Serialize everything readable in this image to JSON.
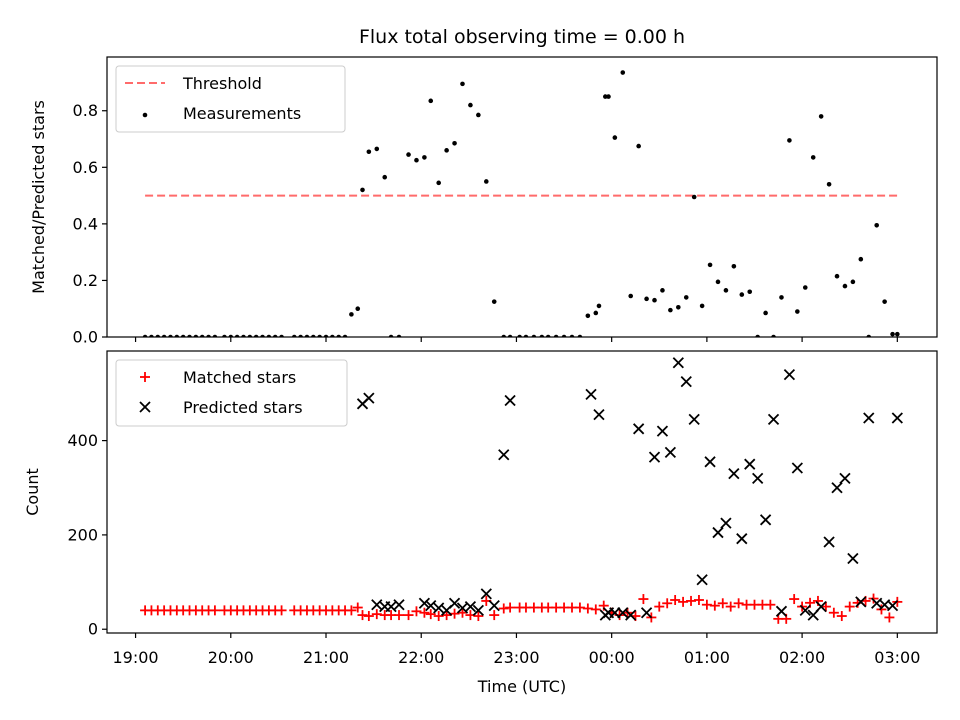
{
  "chart_data": {
    "title": "Flux total observing time = 0.00 h",
    "xlabel": "Time (UTC)",
    "x_ticks": [
      "19:00",
      "20:00",
      "21:00",
      "22:00",
      "23:00",
      "00:00",
      "01:00",
      "02:00",
      "03:00"
    ],
    "colors": {
      "threshold": "#ff6b6b",
      "measurements": "#000000",
      "matched": "#ff0000",
      "predicted": "#000000"
    },
    "panels": [
      {
        "type": "scatter",
        "ylabel": "Matched/Predicted stars",
        "xlim": [
          "18:42",
          "03:25"
        ],
        "ylim": [
          0,
          0.99
        ],
        "y_ticks": [
          "0.0",
          "0.2",
          "0.4",
          "0.6",
          "0.8"
        ],
        "y_tick_values": [
          0,
          0.2,
          0.4,
          0.6,
          0.8
        ],
        "legend_position": "top-left",
        "series": [
          {
            "name": "Threshold",
            "kind": "dashed-line",
            "x": [
              "19:06",
              "03:02"
            ],
            "y": [
              0.5,
              0.5
            ]
          },
          {
            "name": "Measurements",
            "kind": "dots",
            "x": [
              "19:06",
              "19:10",
              "19:14",
              "19:18",
              "19:22",
              "19:26",
              "19:30",
              "19:34",
              "19:38",
              "19:42",
              "19:46",
              "19:50",
              "19:56",
              "20:00",
              "20:04",
              "20:08",
              "20:12",
              "20:16",
              "20:20",
              "20:24",
              "20:28",
              "20:32",
              "20:40",
              "20:44",
              "20:48",
              "20:52",
              "20:56",
              "21:00",
              "21:04",
              "21:08",
              "21:12",
              "21:16",
              "21:20",
              "21:23",
              "21:27",
              "21:32",
              "21:37",
              "21:41",
              "21:46",
              "21:52",
              "21:57",
              "22:02",
              "22:06",
              "22:11",
              "22:16",
              "22:21",
              "22:26",
              "22:31",
              "22:36",
              "22:41",
              "22:46",
              "22:52",
              "22:56",
              "23:02",
              "23:06",
              "23:11",
              "23:16",
              "23:20",
              "23:25",
              "23:30",
              "23:35",
              "23:40",
              "23:45",
              "23:50",
              "23:52",
              "23:56",
              "23:58",
              "00:02",
              "00:07",
              "00:12",
              "00:17",
              "00:22",
              "00:27",
              "00:32",
              "00:37",
              "00:42",
              "00:47",
              "00:52",
              "00:57",
              "01:02",
              "01:07",
              "01:12",
              "01:17",
              "01:22",
              "01:27",
              "01:32",
              "01:37",
              "01:42",
              "01:47",
              "01:52",
              "01:57",
              "02:02",
              "02:07",
              "02:12",
              "02:17",
              "02:22",
              "02:27",
              "02:32",
              "02:37",
              "02:42",
              "02:47",
              "02:52",
              "02:57",
              "03:00"
            ],
            "y": [
              0,
              0,
              0,
              0,
              0,
              0,
              0,
              0,
              0,
              0,
              0,
              0,
              0,
              0,
              0,
              0,
              0,
              0,
              0,
              0,
              0,
              0,
              0,
              0,
              0,
              0,
              0,
              0,
              0,
              0,
              0,
              0.08,
              0.1,
              0.52,
              0.655,
              0.665,
              0.565,
              0,
              0,
              0.645,
              0.625,
              0.635,
              0.835,
              0.545,
              0.66,
              0.685,
              0.895,
              0.82,
              0.785,
              0.55,
              0.125,
              0,
              0,
              0,
              0,
              0,
              0,
              0,
              0,
              0,
              0,
              0,
              0.075,
              0.085,
              0.11,
              0.85,
              0.85,
              0.705,
              0.935,
              0.145,
              0.675,
              0.135,
              0.13,
              0.165,
              0.095,
              0.105,
              0.14,
              0.495,
              0.11,
              0.255,
              0.195,
              0.165,
              0.25,
              0.15,
              0.16,
              0,
              0.085,
              0,
              0.14,
              0.695,
              0.09,
              0.175,
              0.635,
              0.78,
              0.54,
              0.215,
              0.18,
              0.195,
              0.275,
              0,
              0.395,
              0.125,
              0.01,
              0.01
            ]
          }
        ]
      },
      {
        "type": "scatter",
        "ylabel": "Count",
        "xlim": [
          "18:42",
          "03:25"
        ],
        "ylim": [
          -8,
          590
        ],
        "y_ticks": [
          "0",
          "200",
          "400"
        ],
        "y_tick_values": [
          0,
          200,
          400
        ],
        "legend_position": "top-left",
        "series": [
          {
            "name": "Matched stars",
            "kind": "plus",
            "x": [
              "19:06",
              "19:10",
              "19:14",
              "19:18",
              "19:22",
              "19:26",
              "19:30",
              "19:34",
              "19:38",
              "19:42",
              "19:46",
              "19:50",
              "19:56",
              "20:00",
              "20:04",
              "20:08",
              "20:12",
              "20:16",
              "20:20",
              "20:24",
              "20:28",
              "20:32",
              "20:40",
              "20:44",
              "20:48",
              "20:52",
              "20:56",
              "21:00",
              "21:04",
              "21:08",
              "21:12",
              "21:16",
              "21:20",
              "21:23",
              "21:27",
              "21:32",
              "21:37",
              "21:41",
              "21:46",
              "21:52",
              "21:57",
              "22:02",
              "22:06",
              "22:11",
              "22:16",
              "22:21",
              "22:26",
              "22:31",
              "22:36",
              "22:41",
              "22:46",
              "22:52",
              "22:56",
              "23:02",
              "23:06",
              "23:11",
              "23:16",
              "23:20",
              "23:25",
              "23:30",
              "23:35",
              "23:40",
              "23:45",
              "23:50",
              "23:55",
              "00:00",
              "00:05",
              "00:10",
              "00:15",
              "00:20",
              "00:25",
              "00:30",
              "00:35",
              "00:40",
              "00:45",
              "00:50",
              "00:55",
              "01:00",
              "01:05",
              "01:10",
              "01:15",
              "01:20",
              "01:25",
              "01:30",
              "01:35",
              "01:40",
              "01:45",
              "01:50",
              "01:55",
              "02:00",
              "02:05",
              "02:10",
              "02:15",
              "02:20",
              "02:25",
              "02:30",
              "02:35",
              "02:40",
              "02:45",
              "02:50",
              "02:55",
              "03:00"
            ],
            "y": [
              40,
              40,
              40,
              40,
              40,
              40,
              40,
              40,
              40,
              40,
              40,
              40,
              40,
              40,
              40,
              40,
              40,
              40,
              40,
              40,
              40,
              40,
              40,
              40,
              40,
              40,
              40,
              40,
              40,
              40,
              40,
              40,
              46,
              30,
              28,
              32,
              30,
              30,
              30,
              30,
              38,
              35,
              32,
              28,
              30,
              33,
              35,
              30,
              28,
              60,
              30,
              44,
              46,
              46,
              46,
              46,
              46,
              46,
              46,
              46,
              46,
              46,
              44,
              42,
              50,
              35,
              30,
              35,
              28,
              64,
              25,
              48,
              55,
              62,
              58,
              60,
              62,
              52,
              50,
              55,
              48,
              55,
              52,
              52,
              52,
              52,
              22,
              22,
              64,
              48,
              56,
              60,
              48,
              35,
              28,
              48,
              56,
              60,
              65,
              42,
              25,
              58
            ]
          },
          {
            "name": "Predicted stars",
            "kind": "x",
            "x": [
              "21:23",
              "21:27",
              "21:32",
              "21:37",
              "21:41",
              "21:46",
              "22:02",
              "22:06",
              "22:11",
              "22:16",
              "22:21",
              "22:26",
              "22:31",
              "22:36",
              "22:41",
              "22:46",
              "22:52",
              "22:56",
              "23:47",
              "23:52",
              "23:56",
              "23:58",
              "00:02",
              "00:07",
              "00:12",
              "00:17",
              "00:22",
              "00:27",
              "00:32",
              "00:37",
              "00:42",
              "00:47",
              "00:52",
              "00:57",
              "01:02",
              "01:07",
              "01:12",
              "01:17",
              "01:22",
              "01:27",
              "01:32",
              "01:37",
              "01:42",
              "01:47",
              "01:52",
              "01:57",
              "02:02",
              "02:07",
              "02:12",
              "02:17",
              "02:22",
              "02:27",
              "02:32",
              "02:37",
              "02:42",
              "02:47",
              "02:52",
              "02:57",
              "03:00"
            ],
            "y": [
              478,
              490,
              52,
              48,
              48,
              52,
              55,
              50,
              45,
              40,
              55,
              45,
              48,
              40,
              75,
              50,
              370,
              485,
              498,
              455,
              30,
              35,
              35,
              35,
              30,
              425,
              35,
              365,
              420,
              375,
              565,
              525,
              445,
              105,
              355,
              205,
              225,
              330,
              192,
              350,
              320,
              232,
              445,
              38,
              540,
              342,
              40,
              30,
              48,
              185,
              300,
              320,
              150,
              58,
              448,
              55,
              52,
              50,
              448
            ]
          }
        ]
      }
    ]
  }
}
